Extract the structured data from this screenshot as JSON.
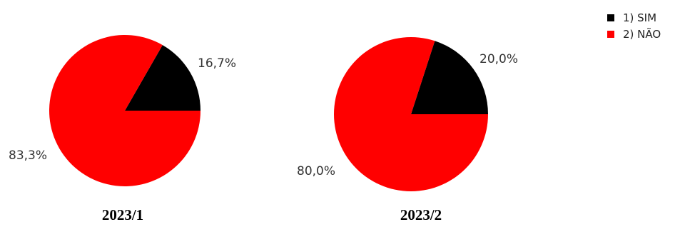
{
  "chart_data": [
    {
      "type": "pie",
      "title": "2023/1",
      "categories": [
        "1) SIM",
        "2) NÃO"
      ],
      "values": [
        16.7,
        83.3
      ],
      "labels": [
        "16,7%",
        "83,3%"
      ],
      "colors": [
        "#000000",
        "#ff0000"
      ],
      "legend": "top-right"
    },
    {
      "type": "pie",
      "title": "2023/2",
      "categories": [
        "1) SIM",
        "2) NÃO"
      ],
      "values": [
        20.0,
        80.0
      ],
      "labels": [
        "20,0%",
        "80,0%"
      ],
      "colors": [
        "#000000",
        "#ff0000"
      ],
      "legend": "top-right"
    }
  ],
  "legend": {
    "items": [
      {
        "label": "1) SIM",
        "color": "#000000"
      },
      {
        "label": "2) NÃO",
        "color": "#ff0000"
      }
    ]
  }
}
